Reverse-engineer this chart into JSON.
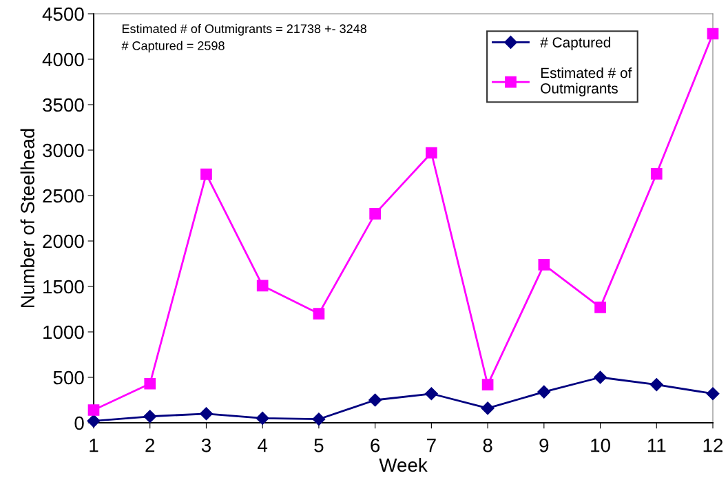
{
  "chart_data": {
    "type": "line",
    "xlabel": "Week",
    "ylabel": "Number of Steelhead",
    "x": [
      1,
      2,
      3,
      4,
      5,
      6,
      7,
      8,
      9,
      10,
      11,
      12
    ],
    "series": [
      {
        "name": "# Captured",
        "color": "#000080",
        "marker": "diamond",
        "values": [
          20,
          70,
          100,
          50,
          40,
          250,
          320,
          160,
          340,
          500,
          420,
          320
        ]
      },
      {
        "name": "Estimated # of\nOutmigrants",
        "color": "#ff00ff",
        "marker": "square",
        "values": [
          140,
          430,
          2735,
          1508,
          1200,
          2300,
          2970,
          420,
          1740,
          1270,
          2740,
          4280
        ]
      }
    ],
    "xlim": [
      1,
      12
    ],
    "xticks": [
      1,
      2,
      3,
      4,
      5,
      6,
      7,
      8,
      9,
      10,
      11,
      12
    ],
    "ylim": [
      0,
      4500
    ],
    "yticks": [
      0,
      500,
      1000,
      1500,
      2000,
      2500,
      3000,
      3500,
      4000,
      4500
    ],
    "grid": false,
    "legend": "top right",
    "line_style": "solid",
    "annotations": [
      "Estimated # of Outmigrants = 21738 +- 3248\n# Captured = 2598"
    ]
  }
}
